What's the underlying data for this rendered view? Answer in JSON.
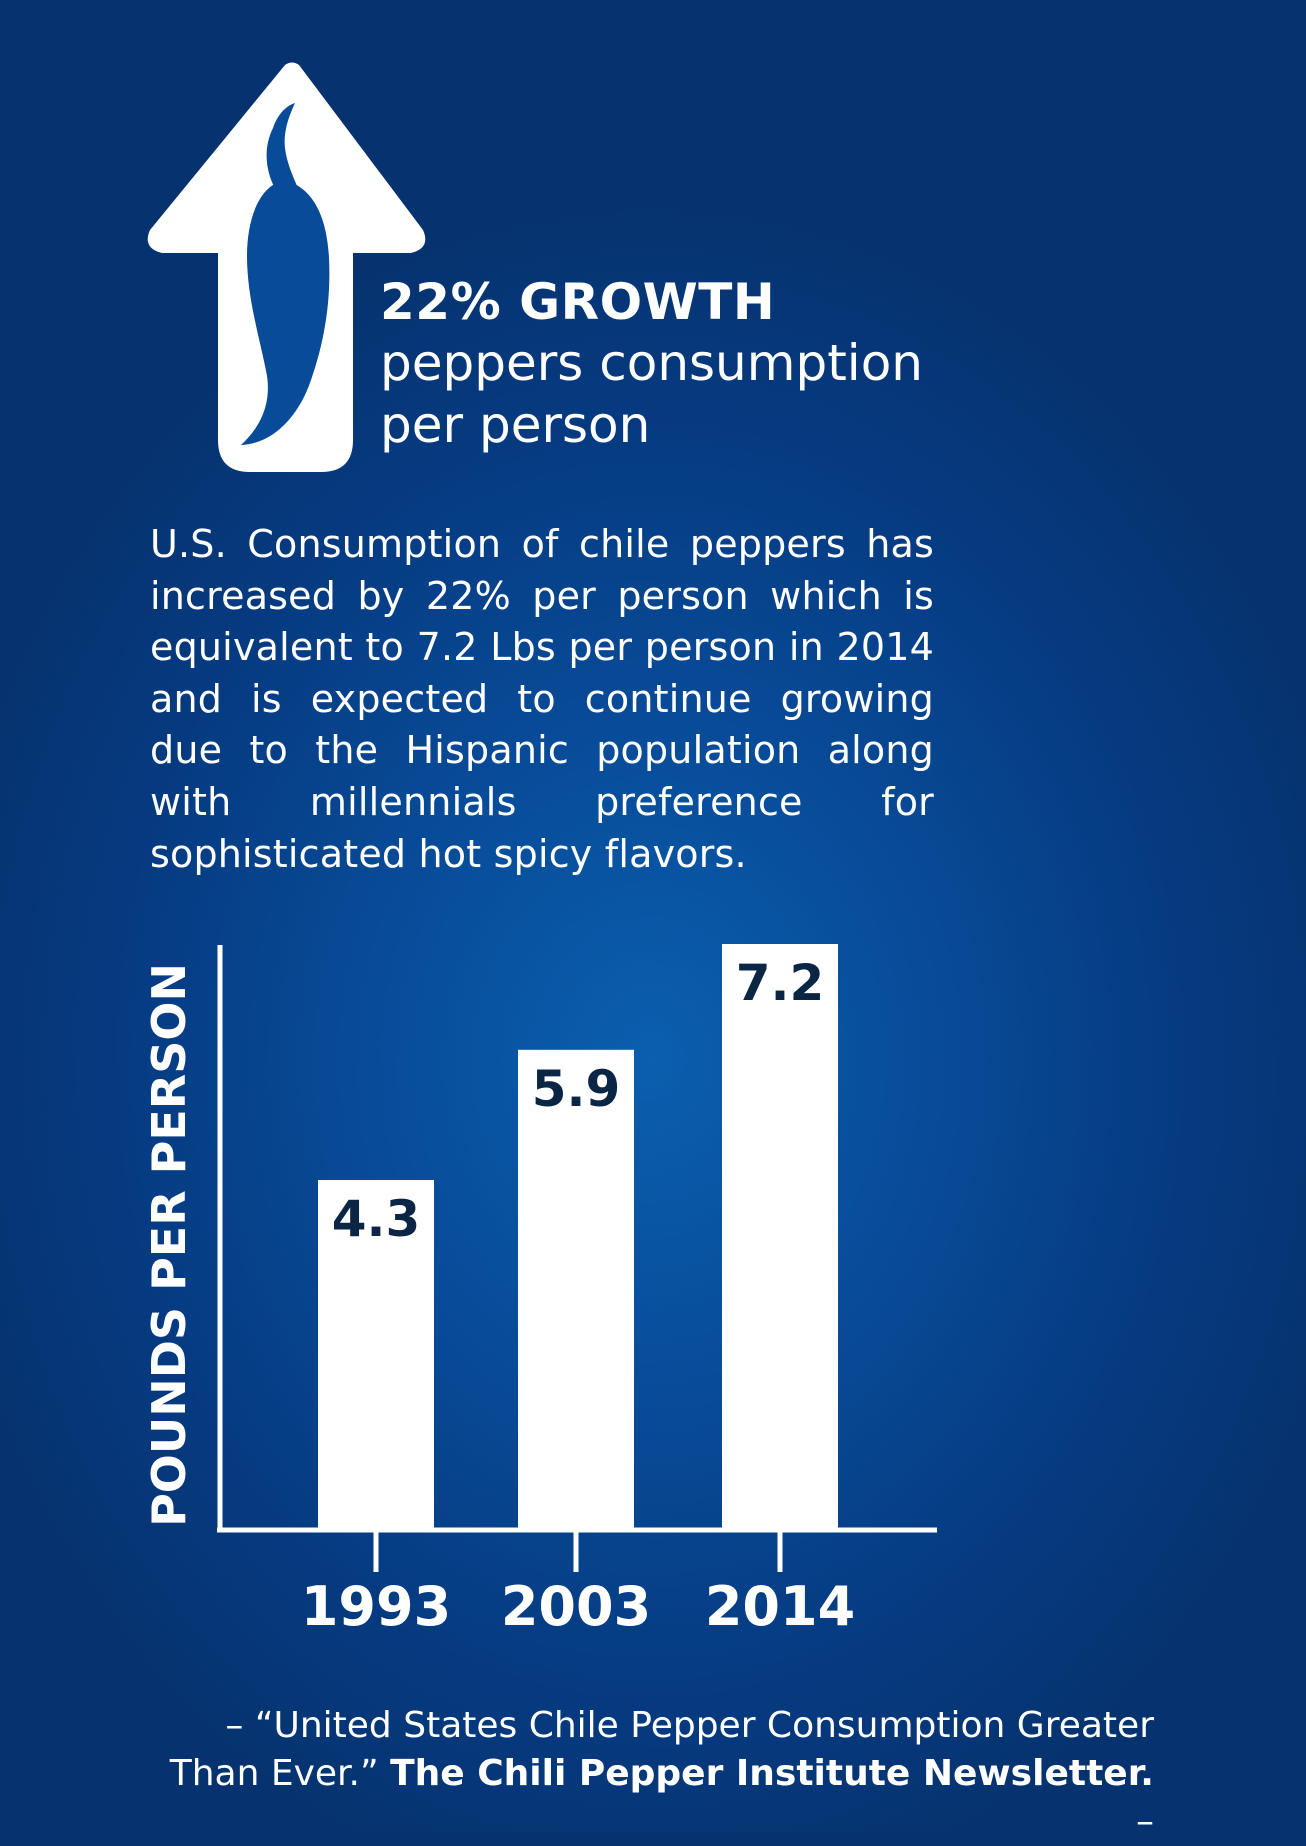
{
  "headline": {
    "title": "22% GROWTH",
    "subtitle_line1": "peppers consumption",
    "subtitle_line2": "per person"
  },
  "description": "U.S. Consumption of chile peppers has increased by 22% per person which is equivalent to 7.2 Lbs per person in 2014 and is expected to continue growing due to the Hispanic population along with millennials preference for sophisticated hot spicy flavors.",
  "icons": {
    "arrow": "up-arrow-icon",
    "pepper": "chili-pepper-icon"
  },
  "colors": {
    "background": "#084b98",
    "bar": "#ffffff",
    "bar_label": "#0b2545",
    "text": "#ffffff"
  },
  "chart_data": {
    "type": "bar",
    "categories": [
      "1993",
      "2003",
      "2014"
    ],
    "values": [
      4.3,
      5.9,
      7.2
    ],
    "value_labels": [
      "4.3",
      "5.9",
      "7.2"
    ],
    "ylabel": "POUNDS PER PERSON",
    "xlabel": "",
    "ylim": [
      0,
      7.2
    ],
    "grid": false
  },
  "source": {
    "prefix": "– “United States Chile Pepper Consumption Greater",
    "line2_plain": "Than Ever.” ",
    "line2_bold": "The Chili Pepper Institute Newsletter.",
    "suffix": " –"
  }
}
